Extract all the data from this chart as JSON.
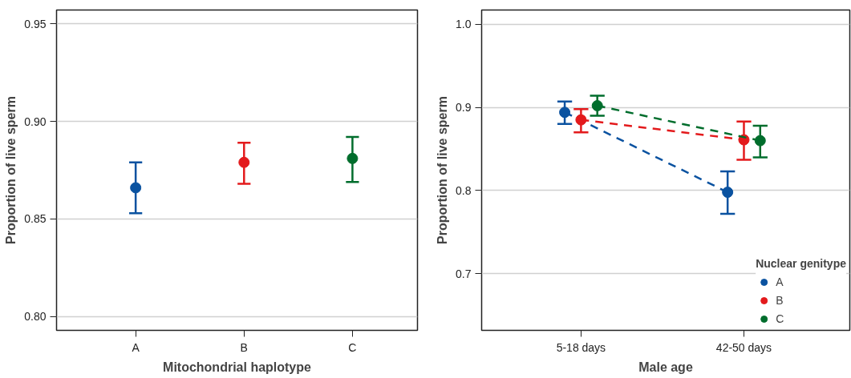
{
  "chart_data": [
    {
      "type": "scatter",
      "categories": [
        "A",
        "B",
        "C"
      ],
      "values": [
        0.866,
        0.879,
        0.881
      ],
      "colors": [
        "#0a52a0",
        "#e31a1c",
        "#006d2c"
      ],
      "errors": [
        [
          0.853,
          0.879
        ],
        [
          0.868,
          0.889
        ],
        [
          0.869,
          0.892
        ]
      ],
      "xlabel": "Mitochondrial haplotype",
      "ylabel": "Proportion of live sperm",
      "ylim": [
        0.793,
        0.957
      ],
      "yticks": [
        {
          "value": 0.8,
          "label": "0.80"
        },
        0.85,
        {
          "value": 0.9,
          "label": "0.90"
        },
        0.95
      ],
      "grid": "y",
      "marker": "circle"
    },
    {
      "type": "line",
      "categories": [
        "5-18 days",
        "42-50 days"
      ],
      "xlabel": "Male age",
      "ylabel": "Proportion of live sperm",
      "legend_title": "Nuclear genitype",
      "legend": "bottom right",
      "ylim": [
        0.632,
        1.017
      ],
      "yticks": [
        {
          "value": 0.7,
          "label": "0.7"
        },
        {
          "value": 0.8,
          "label": "0.8"
        },
        {
          "value": 0.9,
          "label": "0.9"
        },
        {
          "value": 1.0,
          "label": "1.0"
        }
      ],
      "grid": "y",
      "marker": "circle",
      "line_style": "dashed",
      "series": [
        {
          "name": "A",
          "color": "#0a52a0",
          "values": [
            0.894,
            0.798
          ],
          "errors": [
            [
              0.88,
              0.907
            ],
            [
              0.772,
              0.823
            ]
          ]
        },
        {
          "name": "B",
          "color": "#e31a1c",
          "values": [
            0.885,
            0.861
          ],
          "errors": [
            [
              0.87,
              0.898
            ],
            [
              0.837,
              0.883
            ]
          ]
        },
        {
          "name": "C",
          "color": "#006d2c",
          "values": [
            0.902,
            0.86
          ],
          "errors": [
            [
              0.89,
              0.914
            ],
            [
              0.84,
              0.878
            ]
          ]
        }
      ]
    }
  ]
}
